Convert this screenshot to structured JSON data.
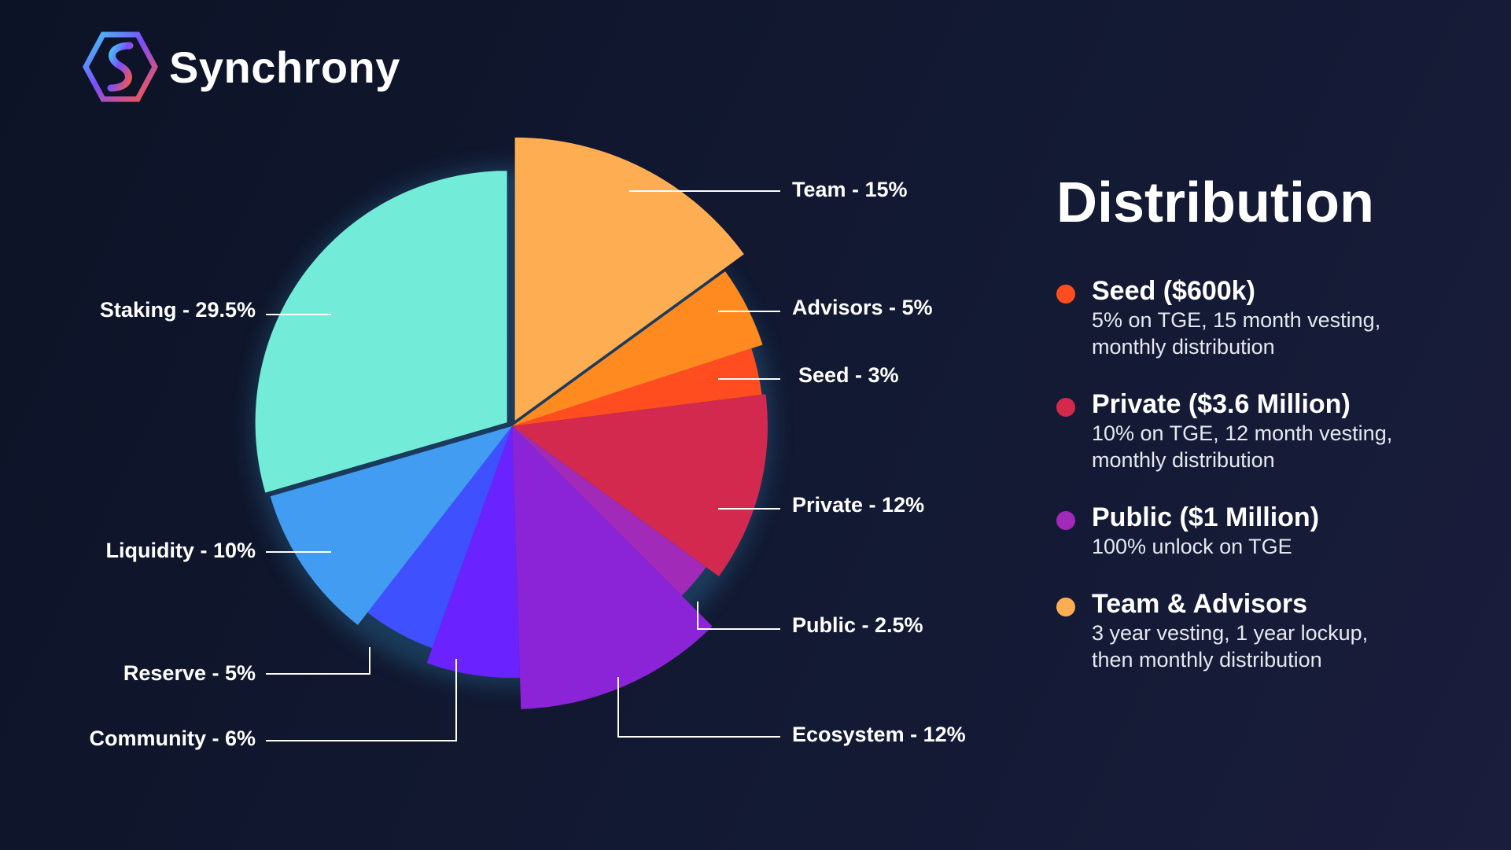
{
  "brand": {
    "name": "Synchrony"
  },
  "legend": {
    "title": "Distribution",
    "items": [
      {
        "name": "Seed ($600k)",
        "desc": [
          "5% on TGE, 15 month vesting,",
          "monthly distribution"
        ],
        "color": "#ff4d1f"
      },
      {
        "name": "Private ($3.6 Million)",
        "desc": [
          "10% on TGE, 12 month vesting,",
          "monthly distribution"
        ],
        "color": "#d3294f"
      },
      {
        "name": "Public ($1 Million)",
        "desc": [
          "100% unlock on TGE"
        ],
        "color": "#a12ab8"
      },
      {
        "name": "Team & Advisors",
        "desc": [
          "3 year vesting, 1 year lockup,",
          "then monthly distribution"
        ],
        "color": "#ffad52"
      }
    ]
  },
  "chart_data": {
    "type": "pie",
    "title": "",
    "slices": [
      {
        "label": "Team - 15%",
        "name": "Team",
        "value": 15,
        "color": "#ffad52"
      },
      {
        "label": "Advisors - 5%",
        "name": "Advisors",
        "value": 5,
        "color": "#ff8a1f"
      },
      {
        "label": "Seed - 3%",
        "name": "Seed",
        "value": 3,
        "color": "#ff4d1f"
      },
      {
        "label": "Private - 12%",
        "name": "Private",
        "value": 12,
        "color": "#d3294f"
      },
      {
        "label": "Public - 2.5%",
        "name": "Public",
        "value": 2.5,
        "color": "#a12ab8"
      },
      {
        "label": "Ecosystem - 12%",
        "name": "Ecosystem",
        "value": 12,
        "color": "#8a24d6"
      },
      {
        "label": "Community - 6%",
        "name": "Community",
        "value": 6,
        "color": "#6a22ff"
      },
      {
        "label": "Reserve - 5%",
        "name": "Reserve",
        "value": 5,
        "color": "#3e50ff"
      },
      {
        "label": "Liquidity - 10%",
        "name": "Liquidity",
        "value": 10,
        "color": "#429cf2"
      },
      {
        "label": "Staking - 29.5%",
        "name": "Staking",
        "value": 29.5,
        "color": "#72ecd8"
      }
    ]
  }
}
